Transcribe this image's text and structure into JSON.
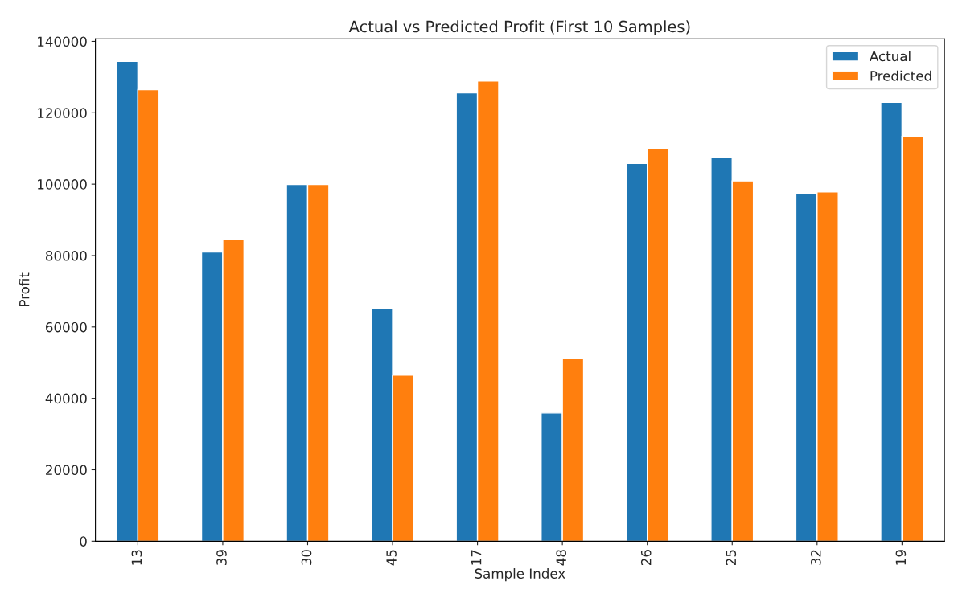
{
  "chart_data": {
    "type": "bar",
    "title": "Actual vs Predicted Profit (First 10 Samples)",
    "xlabel": "Sample Index",
    "ylabel": "Profit",
    "categories": [
      "13",
      "39",
      "30",
      "45",
      "17",
      "48",
      "26",
      "25",
      "32",
      "19"
    ],
    "series": [
      {
        "name": "Actual",
        "color": "#1f77b4",
        "values": [
          134400,
          81000,
          99900,
          65100,
          125600,
          35900,
          105800,
          107600,
          97500,
          122900
        ]
      },
      {
        "name": "Predicted",
        "color": "#ff7f0e",
        "values": [
          126500,
          84600,
          99900,
          46500,
          128900,
          51100,
          110100,
          100900,
          97800,
          113400
        ]
      }
    ],
    "ylim": [
      0,
      140700
    ],
    "yticks": [
      0,
      20000,
      40000,
      60000,
      80000,
      100000,
      120000,
      140000
    ],
    "grid": false,
    "legend": "top right"
  }
}
